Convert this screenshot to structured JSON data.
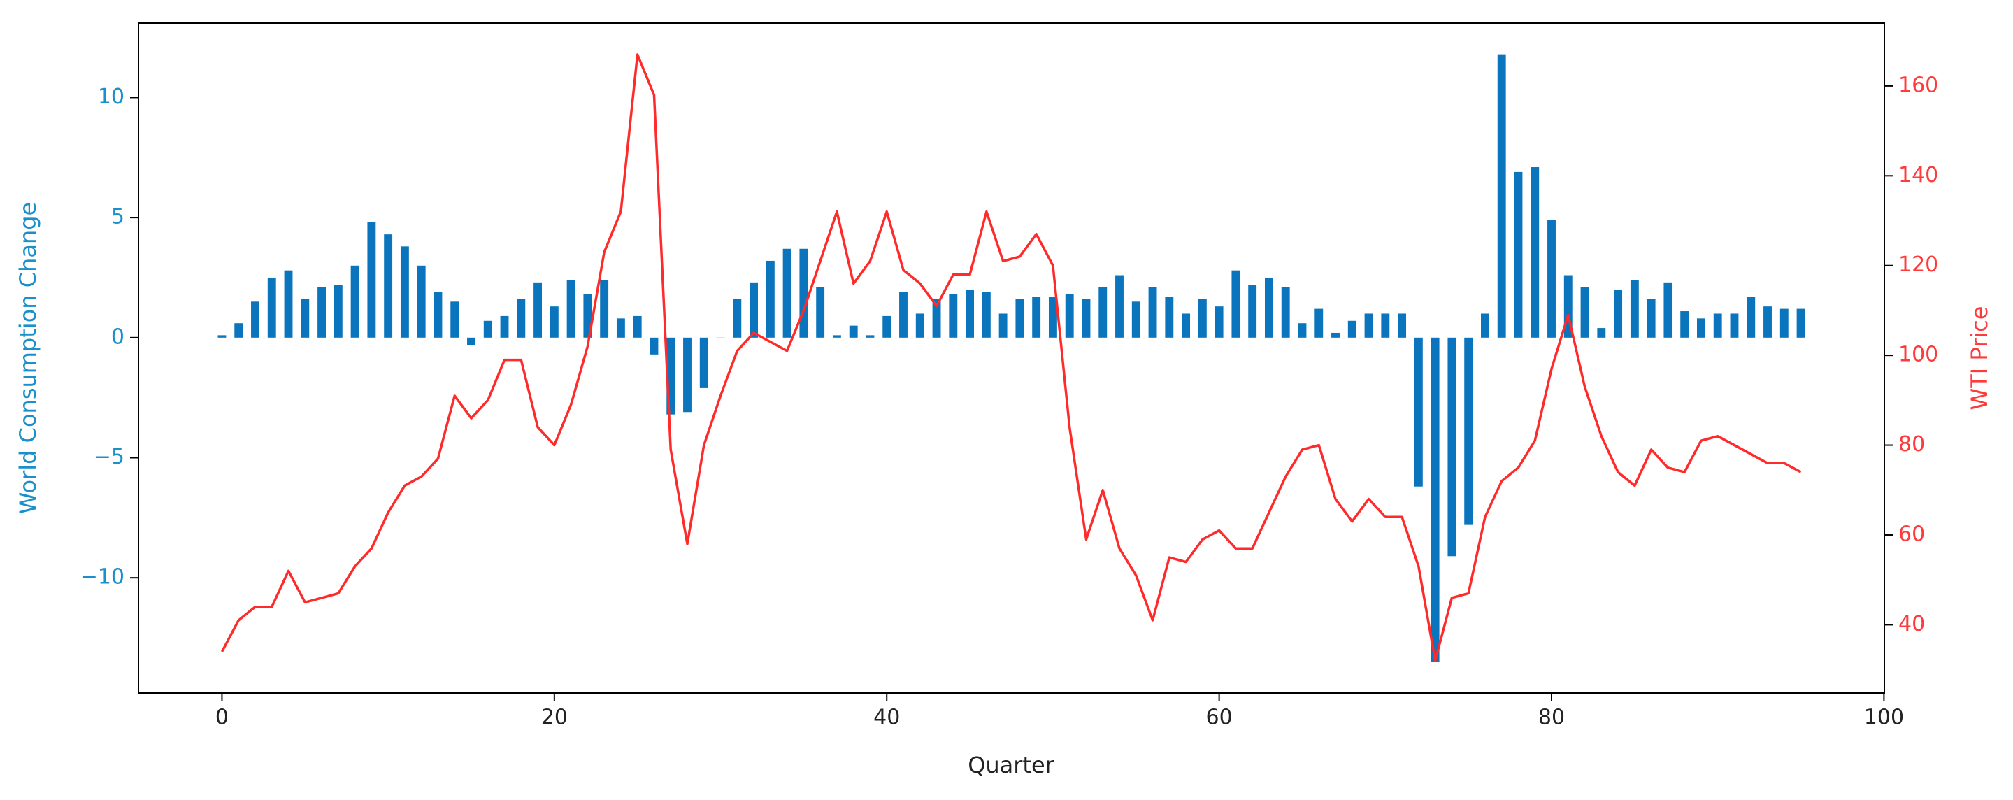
{
  "chart_data": {
    "type": "bar",
    "x_label": "Quarter",
    "y_label": "World Consumption Change",
    "y2_label": "WTI Price",
    "x": [
      0,
      1,
      2,
      3,
      4,
      5,
      6,
      7,
      8,
      9,
      10,
      11,
      12,
      13,
      14,
      15,
      16,
      17,
      18,
      19,
      20,
      21,
      22,
      23,
      24,
      25,
      26,
      27,
      28,
      29,
      30,
      31,
      32,
      33,
      34,
      35,
      36,
      37,
      38,
      39,
      40,
      41,
      42,
      43,
      44,
      45,
      46,
      47,
      48,
      49,
      50,
      51,
      52,
      53,
      54,
      55,
      56,
      57,
      58,
      59,
      60,
      61,
      62,
      63,
      64,
      65,
      66,
      67,
      68,
      69,
      70,
      71,
      72,
      73,
      74,
      75,
      76,
      77,
      78,
      79,
      80,
      81,
      82,
      83,
      84,
      85,
      86,
      87,
      88,
      89,
      90,
      91,
      92,
      93,
      94,
      95
    ],
    "series": [
      {
        "name": "World Consumption Change",
        "type": "bar",
        "axis": "y",
        "color": "#0a75bc",
        "values": [
          0.1,
          0.6,
          1.5,
          2.5,
          2.8,
          1.6,
          2.1,
          2.2,
          3.0,
          4.8,
          4.3,
          3.8,
          3.0,
          1.9,
          1.5,
          -0.3,
          0.7,
          0.9,
          1.6,
          2.3,
          1.3,
          2.4,
          1.8,
          2.4,
          0.8,
          0.9,
          -0.7,
          -3.2,
          -3.1,
          -2.1,
          0,
          1.6,
          2.3,
          3.2,
          3.7,
          3.7,
          2.1,
          0.1,
          0.5,
          0.1,
          0.9,
          1.9,
          1.0,
          1.6,
          1.8,
          2.0,
          1.9,
          1.0,
          1.6,
          1.7,
          1.7,
          1.8,
          1.6,
          2.1,
          2.6,
          1.5,
          2.1,
          1.7,
          1.0,
          1.6,
          1.3,
          2.8,
          2.2,
          2.5,
          2.1,
          0.6,
          1.2,
          0.2,
          0.7,
          1.0,
          1.0,
          1.0,
          -6.2,
          -13.5,
          -9.1,
          -7.8,
          1.0,
          11.8,
          6.9,
          7.1,
          4.9,
          2.6,
          2.1,
          0.4,
          2.0,
          2.4,
          1.6,
          2.3,
          1.1,
          0.8,
          1.0,
          1.0,
          1.7,
          1.3,
          1.2,
          1.2
        ]
      },
      {
        "name": "WTI Price",
        "type": "line",
        "axis": "y2",
        "color": "#ff2a2a",
        "values": [
          34,
          41,
          44,
          44,
          52,
          45,
          46,
          47,
          53,
          57,
          65,
          71,
          73,
          77,
          91,
          86,
          90,
          99,
          99,
          84,
          80,
          89,
          102,
          123,
          132,
          167,
          158,
          79,
          58,
          80,
          91,
          101,
          105,
          103,
          101,
          110,
          121,
          132,
          116,
          121,
          132,
          119,
          116,
          111,
          118,
          118,
          132,
          121,
          122,
          127,
          120,
          84,
          59,
          70,
          57,
          51,
          41,
          55,
          54,
          59,
          61,
          57,
          57,
          65,
          73,
          79,
          80,
          68,
          63,
          68,
          64,
          64,
          53,
          32,
          46,
          47,
          64,
          72,
          75,
          81,
          97,
          109,
          93,
          82,
          74,
          71,
          79,
          75,
          74,
          81,
          82,
          80,
          78,
          76,
          76,
          74
        ]
      }
    ],
    "xlim": [
      -5.025,
      100.025
    ],
    "xticks": [
      0,
      20,
      40,
      60,
      80,
      100
    ],
    "ylim": [
      -14.8,
      13.1
    ],
    "yticks": [
      {
        "value": -10,
        "label": "−10"
      },
      {
        "value": -5,
        "label": "−5"
      },
      0,
      5,
      10
    ],
    "y2lim": [
      24.8,
      174.0
    ],
    "y2ticks": [
      40,
      60,
      80,
      100,
      120,
      140,
      160
    ],
    "bar_width": 0.5,
    "left_axis_color": "#1a8fc9",
    "right_axis_color": "#ff3a3a"
  }
}
